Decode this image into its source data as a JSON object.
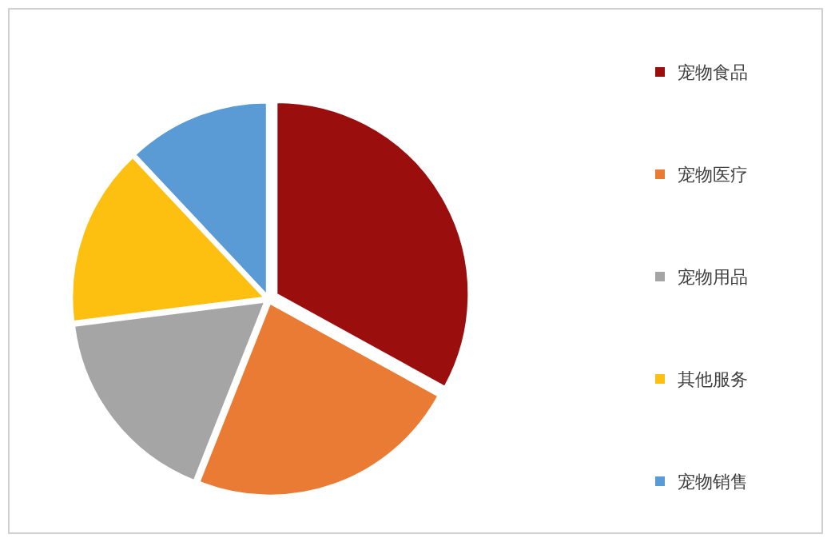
{
  "chart_data": {
    "type": "pie",
    "categories": [
      "宠物食品",
      "宠物医疗",
      "宠物用品",
      "其他服务",
      "宠物销售"
    ],
    "values": [
      33,
      23,
      17,
      15,
      12
    ],
    "colors": [
      "#9b0e0e",
      "#e97b35",
      "#a5a5a5",
      "#fdc010",
      "#5b9bd5"
    ],
    "legend": "right"
  }
}
